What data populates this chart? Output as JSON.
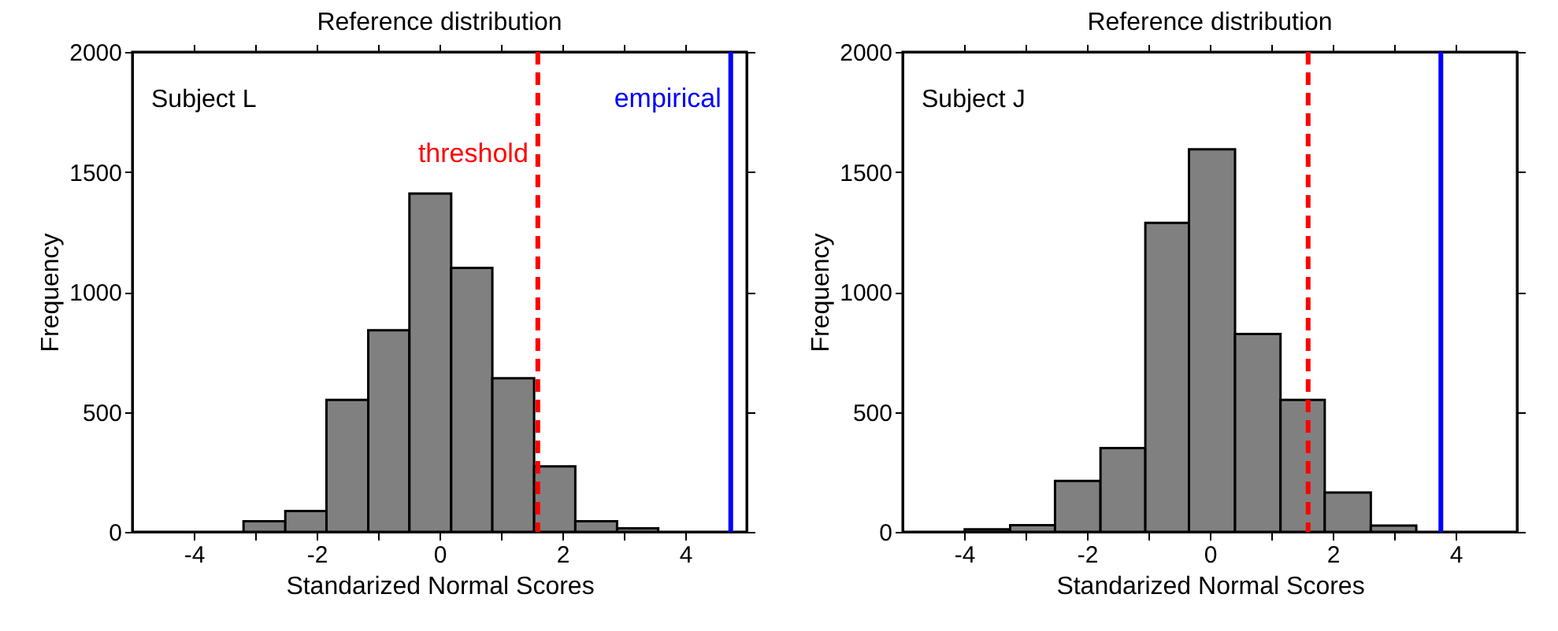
{
  "chart_data": [
    {
      "type": "histogram",
      "title": "Reference distribution",
      "xlabel": "Standarized Normal Scores",
      "ylabel": "Frequency",
      "annotations": [
        "Subject L"
      ],
      "bins": [
        -3.19,
        -2.51,
        -1.84,
        -1.16,
        -0.49,
        0.19,
        0.86,
        1.54,
        2.21,
        2.89,
        3.56
      ],
      "values": [
        44,
        87,
        550,
        840,
        1410,
        1100,
        640,
        273,
        44,
        15
      ],
      "color": "#808080",
      "xlim": [
        -5,
        5
      ],
      "xticks": [
        -4,
        {
          "value": -3,
          "label": null
        },
        -2,
        {
          "value": -1,
          "label": null
        },
        0,
        {
          "value": 1,
          "label": null
        },
        2,
        {
          "value": 3,
          "label": null
        },
        4
      ],
      "ylim": [
        0,
        2000
      ],
      "yticks": [
        0,
        500,
        1000,
        1500,
        2000
      ],
      "grid": false,
      "ref_lines": [
        {
          "axis": "x",
          "value": 1.6,
          "label": "threshold",
          "color": "#ff0000",
          "line_style": "dashed"
        },
        {
          "axis": "x",
          "value": 4.74,
          "label": "empirical",
          "color": "#0000ff",
          "line_style": "solid"
        }
      ]
    },
    {
      "type": "histogram",
      "title": "Reference distribution",
      "xlabel": "Standarized Normal Scores",
      "ylabel": "Frequency",
      "annotations": [
        "Subject J"
      ],
      "bins": [
        -3.99,
        -3.25,
        -2.52,
        -1.78,
        -1.05,
        -0.34,
        0.41,
        1.15,
        1.87,
        2.62,
        3.36
      ],
      "values": [
        11,
        28,
        212,
        349,
        1288,
        1594,
        825,
        550,
        164,
        26
      ],
      "color": "#808080",
      "xlim": [
        -5,
        5
      ],
      "xticks": [
        -4,
        {
          "value": -3,
          "label": null
        },
        -2,
        {
          "value": -1,
          "label": null
        },
        0,
        {
          "value": 1,
          "label": null
        },
        2,
        {
          "value": 3,
          "label": null
        },
        4
      ],
      "ylim": [
        0,
        2000
      ],
      "yticks": [
        0,
        500,
        1000,
        1500,
        2000
      ],
      "grid": false,
      "ref_lines": [
        {
          "axis": "x",
          "value": 1.6,
          "color": "#ff0000",
          "line_style": "dashed"
        },
        {
          "axis": "x",
          "value": 3.76,
          "color": "#0000ff",
          "line_style": "solid"
        }
      ]
    }
  ]
}
